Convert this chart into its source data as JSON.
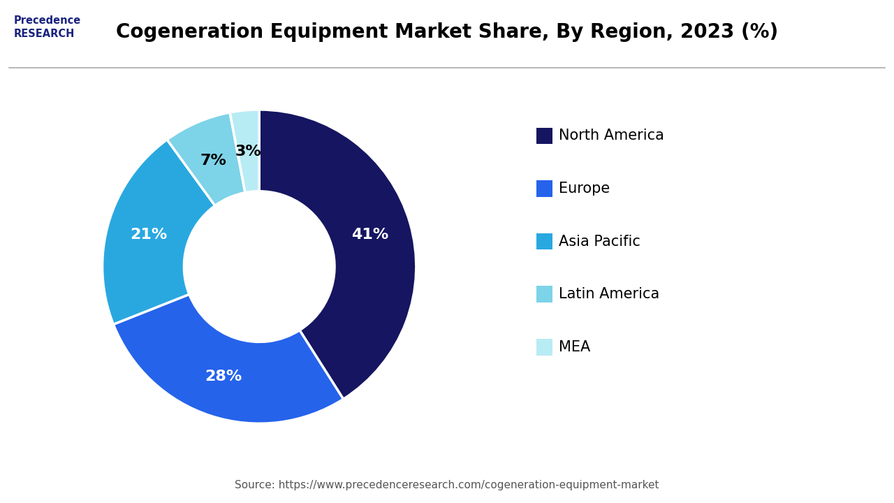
{
  "title": "Cogeneration Equipment Market Share, By Region, 2023 (%)",
  "labels": [
    "North America",
    "Europe",
    "Asia Pacific",
    "Latin America",
    "MEA"
  ],
  "values": [
    41,
    28,
    21,
    7,
    3
  ],
  "colors": [
    "#151561",
    "#2563eb",
    "#29a8e0",
    "#7dd3e8",
    "#b8ecf5"
  ],
  "pct_labels": [
    "41%",
    "28%",
    "21%",
    "7%",
    "3%"
  ],
  "pct_colors": [
    "white",
    "white",
    "white",
    "black",
    "black"
  ],
  "source_text": "Source: https://www.precedenceresearch.com/cogeneration-equipment-market",
  "background_color": "#ffffff",
  "title_fontsize": 20,
  "legend_fontsize": 15,
  "pct_fontsize": 16,
  "source_fontsize": 11
}
